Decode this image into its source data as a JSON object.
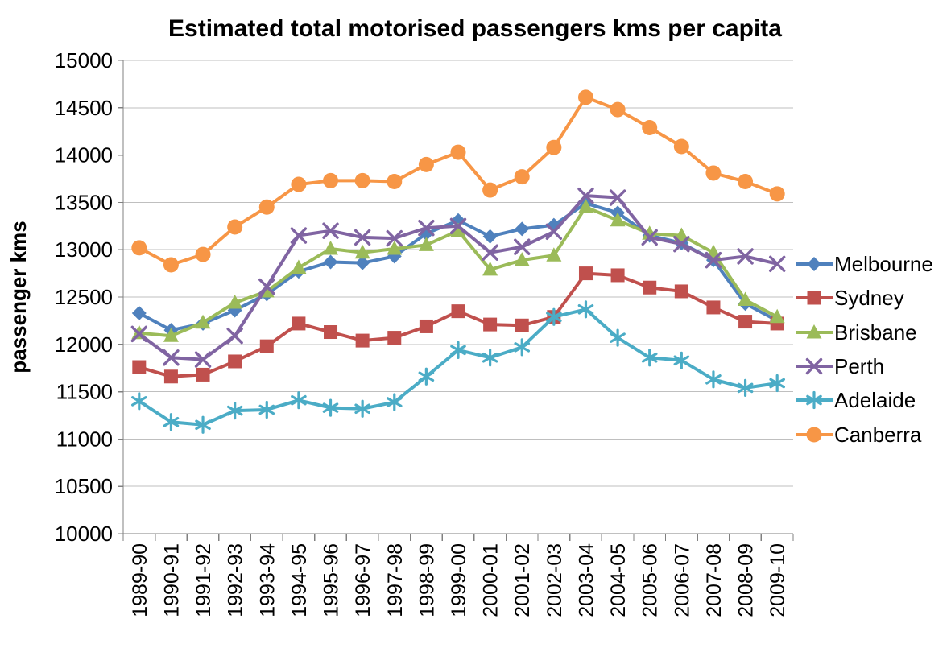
{
  "page": {
    "background": "#FFFFFF"
  },
  "chart_data": {
    "type": "line",
    "title": "Estimated total motorised passengers kms per capita",
    "xlabel": "",
    "ylabel": "passenger kms",
    "ylim": [
      10000,
      15000
    ],
    "ytick_interval": 500,
    "grid": true,
    "legend_position": "right",
    "categories": [
      "1989-90",
      "1990-91",
      "1991-92",
      "1992-93",
      "1993-94",
      "1994-95",
      "1995-96",
      "1996-97",
      "1997-98",
      "1998-99",
      "1999-00",
      "2000-01",
      "2001-02",
      "2002-03",
      "2003-04",
      "2004-05",
      "2005-06",
      "2006-07",
      "2007-08",
      "2008-09",
      "2009-10"
    ],
    "series": [
      {
        "name": "Melbourne",
        "color": "#4F81BD",
        "marker": "diamond",
        "values": [
          12330,
          12150,
          12220,
          12360,
          12530,
          12770,
          12870,
          12860,
          12930,
          13170,
          13310,
          13140,
          13220,
          13260,
          13490,
          13390,
          13150,
          13070,
          12890,
          12430,
          12250
        ]
      },
      {
        "name": "Sydney",
        "color": "#C0504D",
        "marker": "square",
        "values": [
          11760,
          11660,
          11680,
          11820,
          11980,
          12220,
          12130,
          12040,
          12070,
          12190,
          12350,
          12210,
          12200,
          12290,
          12750,
          12730,
          12600,
          12560,
          12390,
          12240,
          12220
        ]
      },
      {
        "name": "Brisbane",
        "color": "#9BBB59",
        "marker": "triangle",
        "values": [
          12120,
          12090,
          12230,
          12440,
          12560,
          12810,
          13010,
          12970,
          13010,
          13050,
          13200,
          12790,
          12890,
          12940,
          13450,
          13310,
          13170,
          13150,
          12970,
          12470,
          12290
        ]
      },
      {
        "name": "Perth",
        "color": "#8064A2",
        "marker": "x",
        "values": [
          12110,
          11860,
          11840,
          12090,
          12610,
          13150,
          13200,
          13130,
          13120,
          13230,
          13250,
          12970,
          13030,
          13190,
          13570,
          13550,
          13130,
          13060,
          12890,
          12930,
          12850
        ]
      },
      {
        "name": "Adelaide",
        "color": "#4BACC6",
        "marker": "asterisk",
        "values": [
          11400,
          11180,
          11150,
          11300,
          11310,
          11410,
          11330,
          11320,
          11390,
          11660,
          11940,
          11860,
          11970,
          12290,
          12370,
          12070,
          11860,
          11830,
          11630,
          11540,
          11590
        ]
      },
      {
        "name": "Canberra",
        "color": "#F79646",
        "marker": "circle",
        "values": [
          13020,
          12840,
          12950,
          13240,
          13450,
          13690,
          13730,
          13730,
          13720,
          13900,
          14030,
          13630,
          13770,
          14080,
          14610,
          14480,
          14290,
          14090,
          13810,
          13720,
          13590
        ]
      }
    ],
    "axis_color": "#808080",
    "grid_color": "#BFBFBF",
    "text_color": "#000000"
  }
}
